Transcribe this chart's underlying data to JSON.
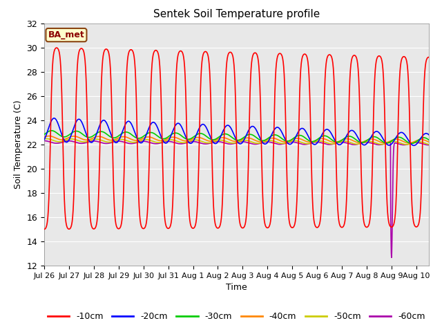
{
  "title": "Sentek Soil Temperature profile",
  "xlabel": "Time",
  "ylabel": "Soil Temperature (C)",
  "ylim": [
    12,
    32
  ],
  "xlim": [
    0,
    15.5
  ],
  "background_color": "#e8e8e8",
  "annotation_label": "BA_met",
  "xtick_labels": [
    "Jul 26",
    "Jul 27",
    "Jul 28",
    "Jul 29",
    "Jul 30",
    "Jul 31",
    "Aug 1",
    "Aug 2",
    "Aug 3",
    "Aug 4",
    "Aug 5",
    "Aug 6",
    "Aug 7",
    "Aug 8",
    "Aug 9",
    "Aug 10"
  ],
  "xtick_positions": [
    0,
    1,
    2,
    3,
    4,
    5,
    6,
    7,
    8,
    9,
    10,
    11,
    12,
    13,
    14,
    15
  ],
  "ytick_positions": [
    12,
    14,
    16,
    18,
    20,
    22,
    24,
    26,
    28,
    30,
    32
  ],
  "series_colors": {
    "-10cm": "#ff0000",
    "-20cm": "#0000ff",
    "-30cm": "#00cc00",
    "-40cm": "#ff8800",
    "-50cm": "#cccc00",
    "-60cm": "#aa00aa"
  }
}
